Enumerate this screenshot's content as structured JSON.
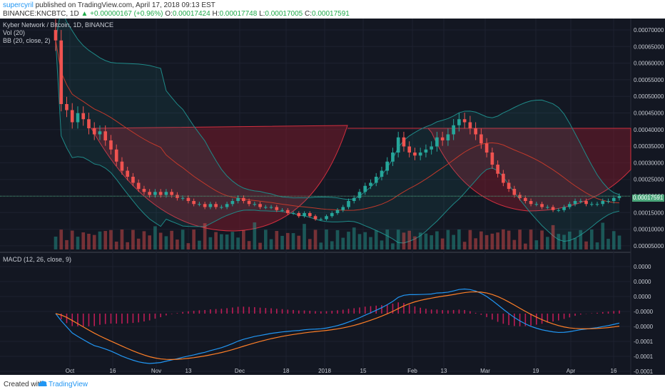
{
  "header": {
    "author": "supercyril",
    "published_text": " published on TradingView.com, April 17, 2018 09:13 EST",
    "symbol_text": "BINANCE:KNCBTC, 1D",
    "change_value": "+0.00000167 (+0.96%)",
    "o_label": "O:",
    "o_value": "0.00017424",
    "h_label": "H:",
    "h_value": "0.00017748",
    "l_label": "L:",
    "l_value": "0.00017005",
    "c_label": "C:",
    "c_value": "0.00017591"
  },
  "panes": {
    "title": "Kyber Network / Bitcoin, 1D, BINANCE",
    "vol_label": "Vol (20)",
    "bb_label": "BB (20, close, 2)",
    "macd_label": "MACD (12, 26, close, 9)",
    "last_price_tag": "0.00017591"
  },
  "footer": {
    "created_with": "Created with",
    "brand": "TradingView"
  },
  "colors": {
    "background": "#131722",
    "up": "#26a69a",
    "down": "#ef5350",
    "bb_band": "#1f8a88",
    "cup_fill": "#7a1a2a",
    "macd_line": "#2196f3",
    "signal_line": "#ff7f27",
    "histogram": "#e91e63"
  },
  "chart_data": {
    "type": "candlestick",
    "price_axis_ticks": [
      "0.00070000",
      "0.00065000",
      "0.00060000",
      "0.00055000",
      "0.00050000",
      "0.00045000",
      "0.00040000",
      "0.00035000",
      "0.00030000",
      "0.00025000",
      "0.00020000",
      "0.00015000",
      "0.00010000",
      "0.00005000"
    ],
    "macd_axis_ticks": [
      "0.0000",
      "0.0000",
      "0.0000",
      "-0.0000",
      "-0.0000",
      "-0.0001",
      "-0.0001",
      "-0.0001"
    ],
    "time_axis_ticks": [
      "Oct",
      "16",
      "Nov",
      "13",
      "Dec",
      "18",
      "2018",
      "15",
      "Feb",
      "13",
      "Mar",
      "19",
      "Apr",
      "16"
    ],
    "ylim": [
      0,
      0.00072
    ],
    "price_close_series": [
      0.00069,
      0.00048,
      0.00046,
      0.00042,
      0.00045,
      0.00043,
      0.0004,
      0.00038,
      0.00039,
      0.00036,
      0.00033,
      0.00029,
      0.00026,
      0.00024,
      0.00022,
      0.0002,
      0.00019,
      0.00018,
      0.00019,
      0.00018,
      0.00019,
      0.00018,
      0.00017,
      0.00017,
      0.00016,
      0.00015,
      0.00015,
      0.00014,
      0.00015,
      0.00014,
      0.00014,
      0.00015,
      0.00016,
      0.00017,
      0.00016,
      0.00015,
      0.00015,
      0.00014,
      0.00014,
      0.00014,
      0.00013,
      0.00013,
      0.00012,
      0.00012,
      0.00011,
      0.00012,
      0.00011,
      0.0001,
      0.0001,
      0.00011,
      0.00012,
      0.00013,
      0.00014,
      0.00016,
      0.00017,
      0.00019,
      0.00021,
      0.00022,
      0.00024,
      0.00026,
      0.00029,
      0.00032,
      0.00037,
      0.00034,
      0.00032,
      0.00031,
      0.00032,
      0.00033,
      0.00034,
      0.00037,
      0.00036,
      0.00038,
      0.00041,
      0.00043,
      0.00042,
      0.0004,
      0.00038,
      0.00035,
      0.00032,
      0.00028,
      0.00025,
      0.00022,
      0.0002,
      0.00018,
      0.00017,
      0.00016,
      0.00015,
      0.00015,
      0.00014,
      0.00014,
      0.00013,
      0.00013,
      0.00014,
      0.00015,
      0.00016,
      0.00016,
      0.00015,
      0.00015,
      0.00015,
      0.00016,
      0.00016,
      0.00017,
      0.000176
    ]
  }
}
